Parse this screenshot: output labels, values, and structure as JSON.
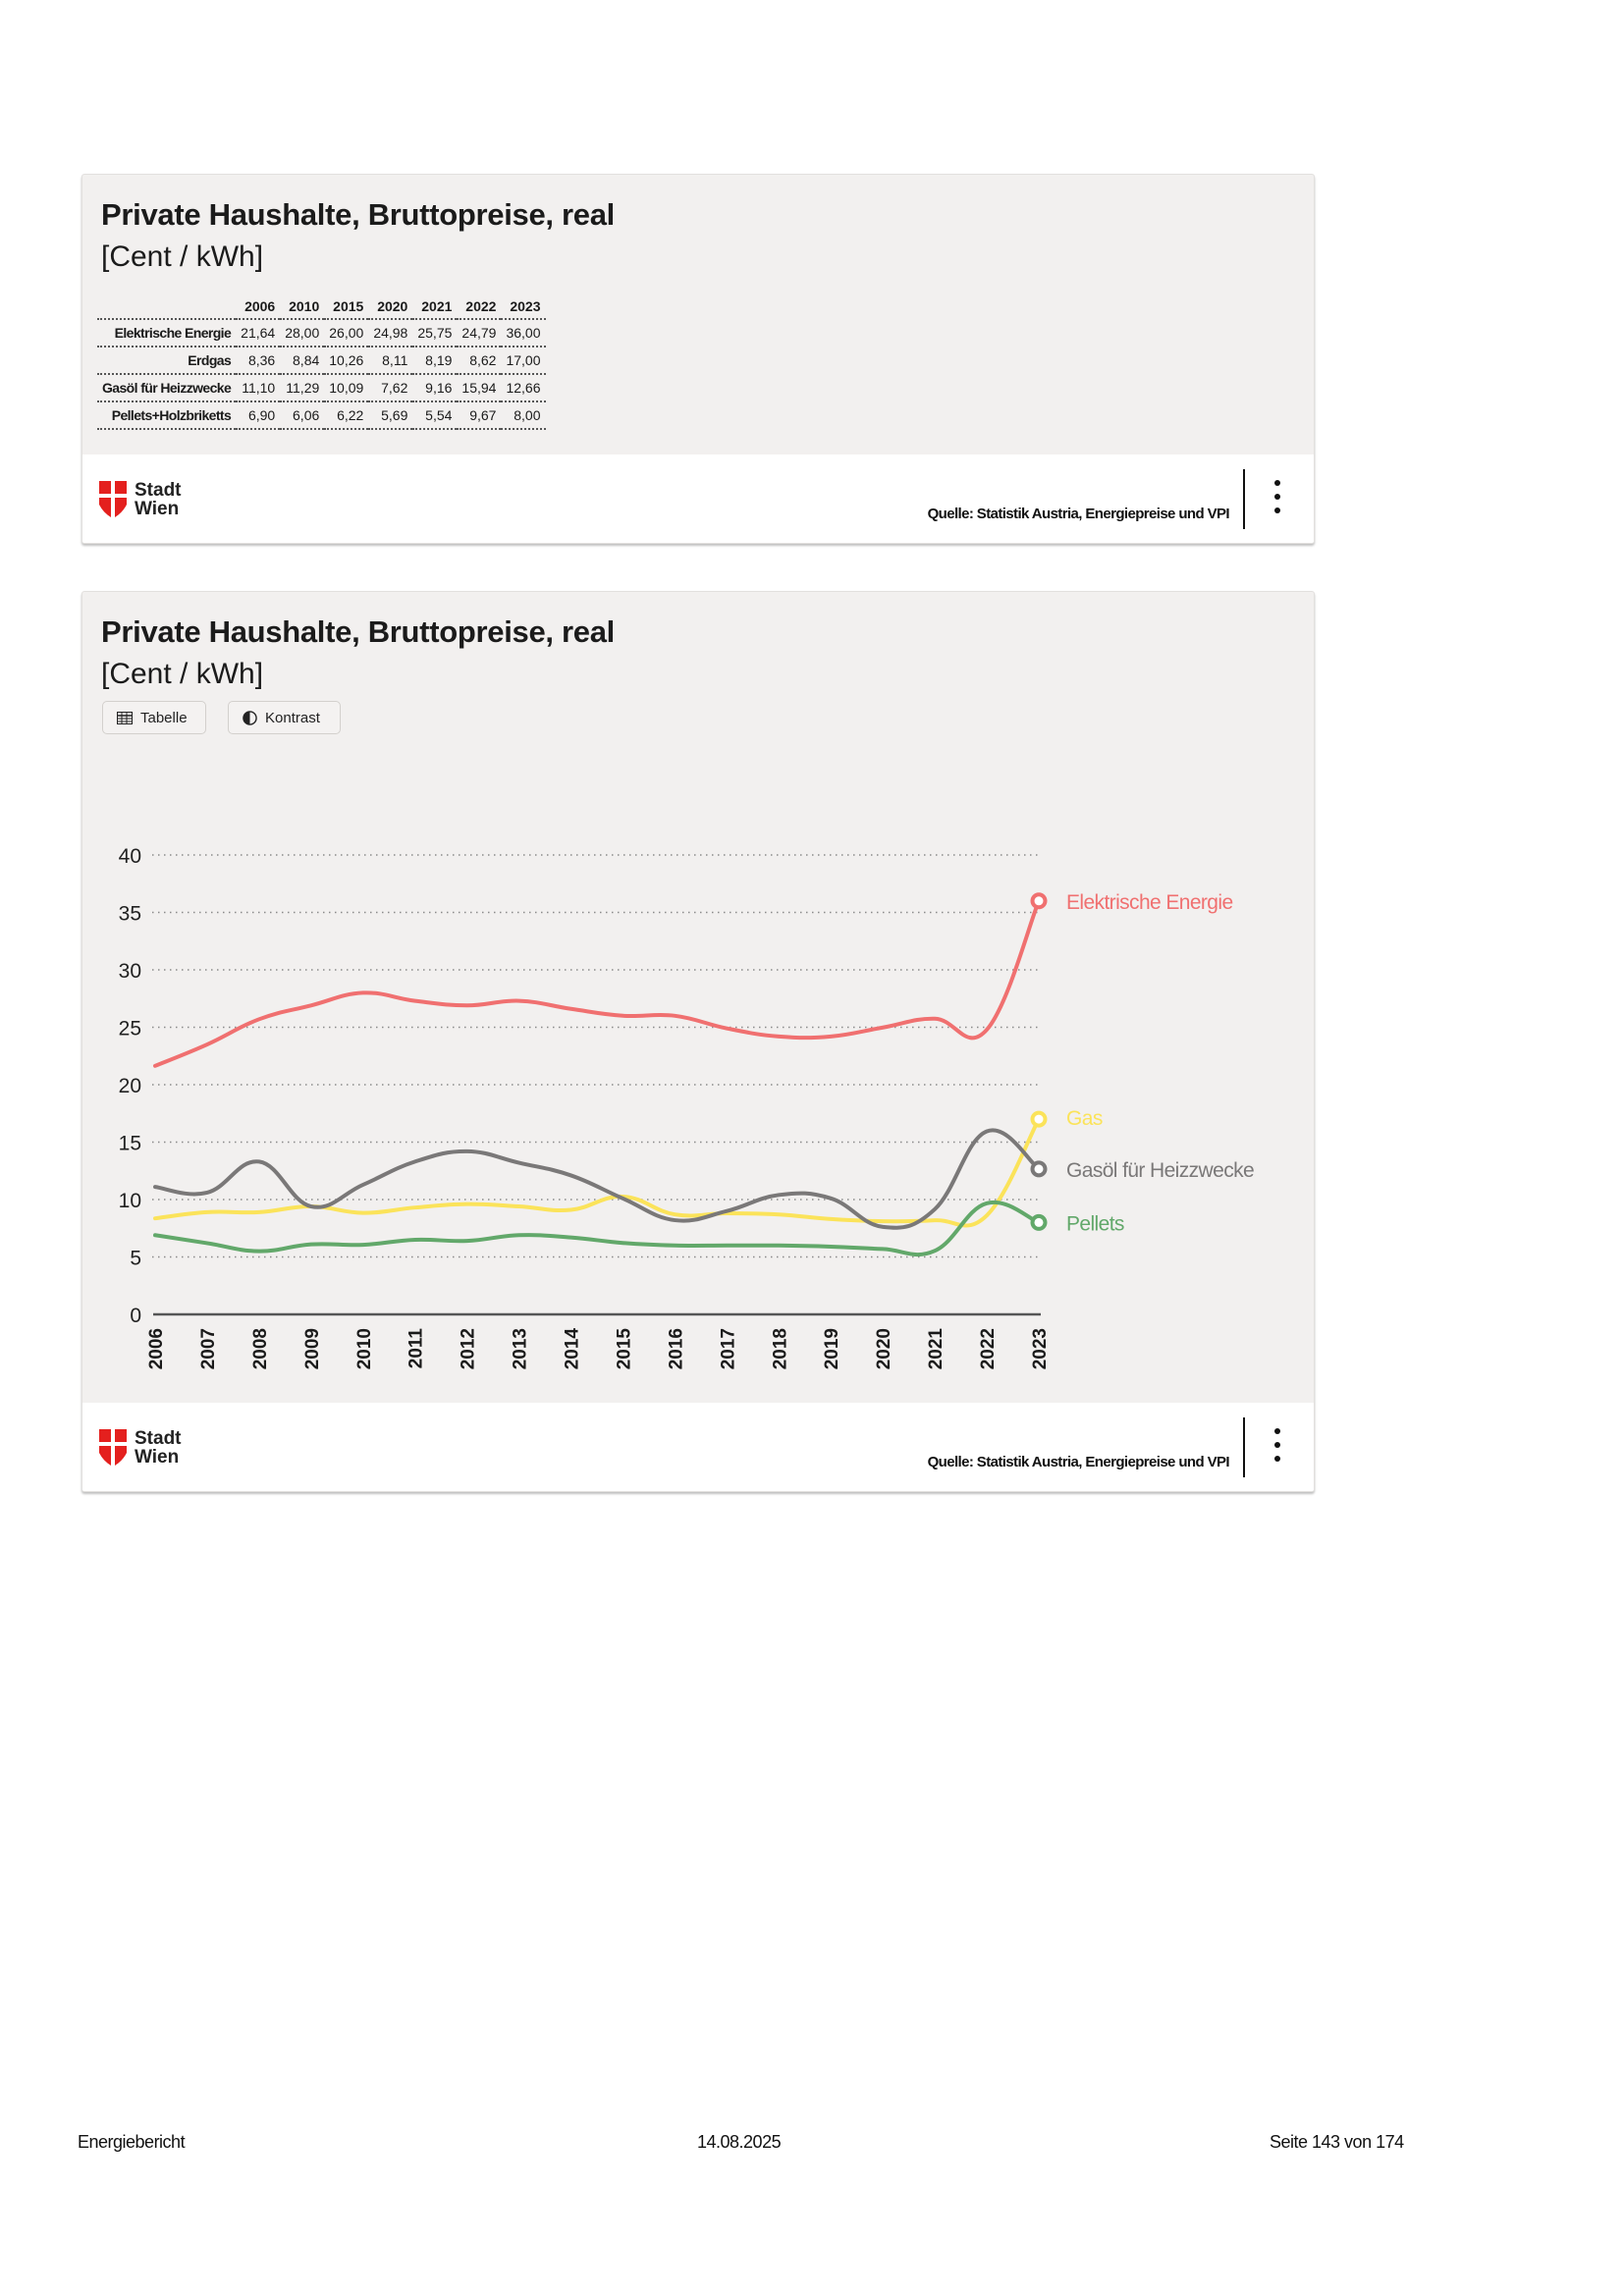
{
  "card1": {
    "title": "Private Haushalte, Bruttopreise, real",
    "subtitle": "[Cent / kWh]",
    "table": {
      "columns": [
        "",
        "2006",
        "2010",
        "2015",
        "2020",
        "2021",
        "2022",
        "2023"
      ],
      "rows": [
        {
          "label": "Elektrische Energie",
          "values": [
            "21,64",
            "28,00",
            "26,00",
            "24,98",
            "25,75",
            "24,79",
            "36,00"
          ]
        },
        {
          "label": "Erdgas",
          "values": [
            "8,36",
            "8,84",
            "10,26",
            "8,11",
            "8,19",
            "8,62",
            "17,00"
          ]
        },
        {
          "label": "Gasöl für Heizzwecke",
          "values": [
            "11,10",
            "11,29",
            "10,09",
            "7,62",
            "9,16",
            "15,94",
            "12,66"
          ]
        },
        {
          "label": "Pellets+Holzbriketts",
          "values": [
            "6,90",
            "6,06",
            "6,22",
            "5,69",
            "5,54",
            "9,67",
            "8,00"
          ]
        }
      ]
    },
    "footer": {
      "logo_line1": "Stadt",
      "logo_line2": "Wien",
      "source": "Quelle: Statistik Austria, Energiepreise und VPI",
      "menu_icon": "more-vertical-icon"
    }
  },
  "card2": {
    "title": "Private Haushalte, Bruttopreise, real",
    "subtitle": "[Cent / kWh]",
    "buttons": {
      "table_label": "Tabelle",
      "table_icon": "table-icon",
      "contrast_label": "Kontrast",
      "contrast_icon": "contrast-icon"
    },
    "footer": {
      "logo_line1": "Stadt",
      "logo_line2": "Wien",
      "source": "Quelle: Statistik Austria, Energiepreise und VPI",
      "menu_icon": "more-vertical-icon"
    }
  },
  "chart_data": {
    "type": "line",
    "title": "Private Haushalte, Bruttopreise, real",
    "subtitle": "[Cent / kWh]",
    "xlabel": "",
    "ylabel": "",
    "x": [
      2006,
      2007,
      2008,
      2009,
      2010,
      2011,
      2012,
      2013,
      2014,
      2015,
      2016,
      2017,
      2018,
      2019,
      2020,
      2021,
      2022,
      2023
    ],
    "ylim": [
      0,
      40
    ],
    "yticks": [
      0,
      5,
      10,
      15,
      20,
      25,
      30,
      35,
      40
    ],
    "grid": true,
    "legend": "right, end-of-line labels",
    "series": [
      {
        "name": "Elektrische Energie",
        "color": "#f07070",
        "values": [
          21.64,
          23.5,
          25.7,
          26.9,
          28.0,
          27.3,
          26.9,
          27.3,
          26.6,
          26.0,
          26.0,
          24.9,
          24.2,
          24.2,
          24.98,
          25.75,
          24.79,
          36.0
        ]
      },
      {
        "name": "Gas",
        "color": "#fbe35a",
        "values": [
          8.36,
          8.9,
          8.9,
          9.4,
          8.84,
          9.3,
          9.6,
          9.4,
          9.1,
          10.26,
          8.7,
          8.8,
          8.7,
          8.3,
          8.11,
          8.19,
          8.62,
          17.0
        ]
      },
      {
        "name": "Gasöl für Heizzwecke",
        "color": "#7a7878",
        "values": [
          11.1,
          10.6,
          13.3,
          9.4,
          11.29,
          13.3,
          14.2,
          13.2,
          12.1,
          10.09,
          8.2,
          9.0,
          10.4,
          10.1,
          7.62,
          9.16,
          15.94,
          12.66
        ]
      },
      {
        "name": "Pellets",
        "color": "#62a86a",
        "values": [
          6.9,
          6.2,
          5.5,
          6.1,
          6.06,
          6.5,
          6.4,
          6.9,
          6.7,
          6.22,
          6.0,
          6.0,
          6.0,
          5.9,
          5.69,
          5.54,
          9.67,
          8.0
        ]
      }
    ]
  },
  "page_footer": {
    "left": "Energiebericht",
    "center": "14.08.2025",
    "right": "Seite 143 von 174"
  }
}
